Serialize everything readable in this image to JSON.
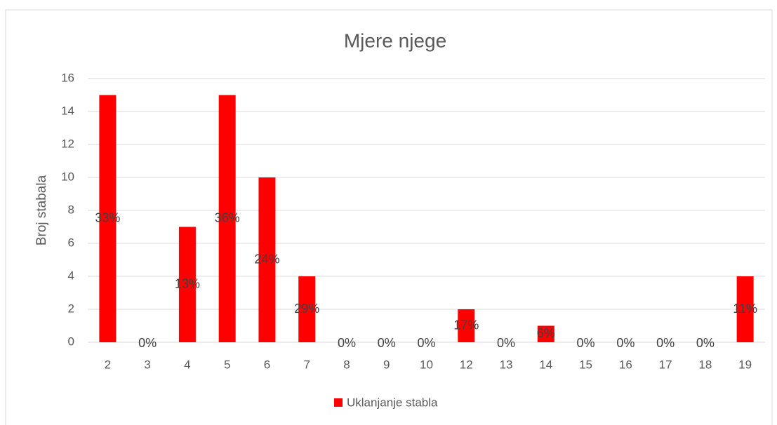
{
  "chart_data": {
    "type": "bar",
    "title": "Mjere njege",
    "y_label": "Broj stabala",
    "categories": [
      "2",
      "3",
      "4",
      "5",
      "6",
      "7",
      "8",
      "9",
      "10",
      "12",
      "13",
      "14",
      "15",
      "16",
      "17",
      "18",
      "19"
    ],
    "series": [
      {
        "name": "Uklanjanje stabla",
        "color": "#ff0000",
        "values": [
          15,
          0,
          7,
          15,
          10,
          4,
          0,
          0,
          0,
          2,
          0,
          1,
          0,
          0,
          0,
          0,
          4
        ]
      }
    ],
    "data_labels": [
      "33%",
      "0%",
      "13%",
      "36%",
      "24%",
      "29%",
      "0%",
      "0%",
      "0%",
      "17%",
      "0%",
      "6%",
      "0%",
      "0%",
      "0%",
      "0%",
      "11%"
    ],
    "ylim": [
      0,
      16
    ],
    "yticks": [
      0,
      2,
      4,
      6,
      8,
      10,
      12,
      14,
      16
    ],
    "grid": true,
    "legend": "bottom"
  }
}
